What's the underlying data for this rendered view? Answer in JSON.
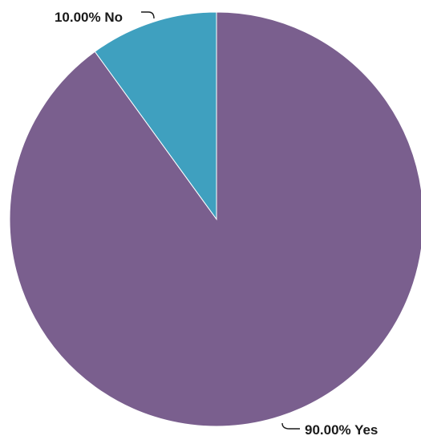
{
  "chart_data": {
    "type": "pie",
    "start": "12 o'clock",
    "direction": "clockwise",
    "slices": [
      {
        "name": "Yes",
        "value": 90.0,
        "label": "90.00% Yes",
        "color": "#7a5f8e"
      },
      {
        "name": "No",
        "value": 10.0,
        "label": "10.00% No",
        "color": "#3fa0bf"
      }
    ]
  }
}
